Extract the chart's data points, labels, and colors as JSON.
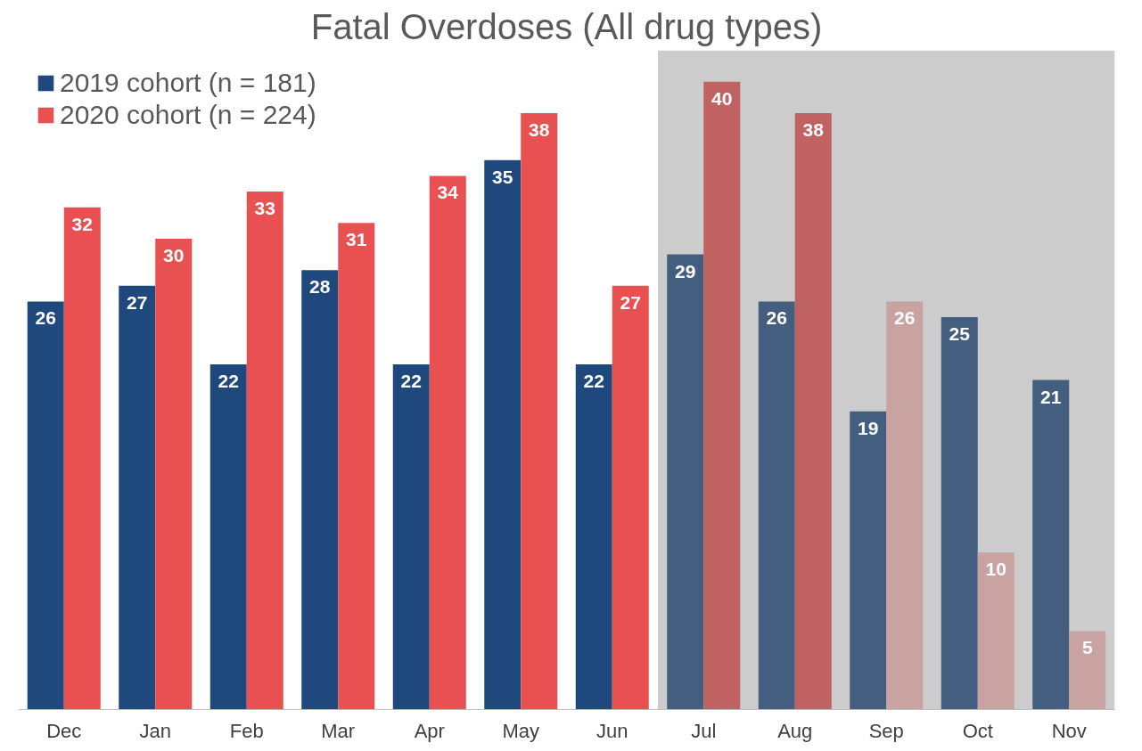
{
  "chart_data": {
    "type": "bar",
    "title": "Fatal Overdoses (All drug types)",
    "categories": [
      "Dec",
      "Jan",
      "Feb",
      "Mar",
      "Apr",
      "May",
      "Jun",
      "Jul",
      "Aug",
      "Sep",
      "Oct",
      "Nov"
    ],
    "series": [
      {
        "name": "2019 cohort (n = 181)",
        "color": "#1f497d",
        "colors": [
          null,
          null,
          null,
          null,
          null,
          null,
          null,
          "#435e7e",
          "#435e7e",
          "#435e7e",
          "#435e7e",
          "#435e7e"
        ],
        "values": [
          26,
          27,
          22,
          28,
          22,
          35,
          22,
          29,
          26,
          19,
          25,
          21
        ]
      },
      {
        "name": "2020 cohort (n = 224)",
        "color": "#e85052",
        "colors": [
          null,
          null,
          null,
          null,
          null,
          null,
          null,
          "#c06262",
          "#c06262",
          "#c9a2a2",
          "#c9a2a2",
          "#c9a2a2"
        ],
        "values": [
          32,
          30,
          33,
          31,
          34,
          38,
          27,
          40,
          38,
          26,
          10,
          5
        ]
      }
    ],
    "ylim": [
      0,
      42
    ],
    "tick_labels": "x",
    "data_labels": true,
    "grid": false,
    "legend": "top left",
    "bands": [
      {
        "axis": "x",
        "from": "Jul",
        "to": "Nov",
        "color": "#cccccc"
      }
    ]
  }
}
